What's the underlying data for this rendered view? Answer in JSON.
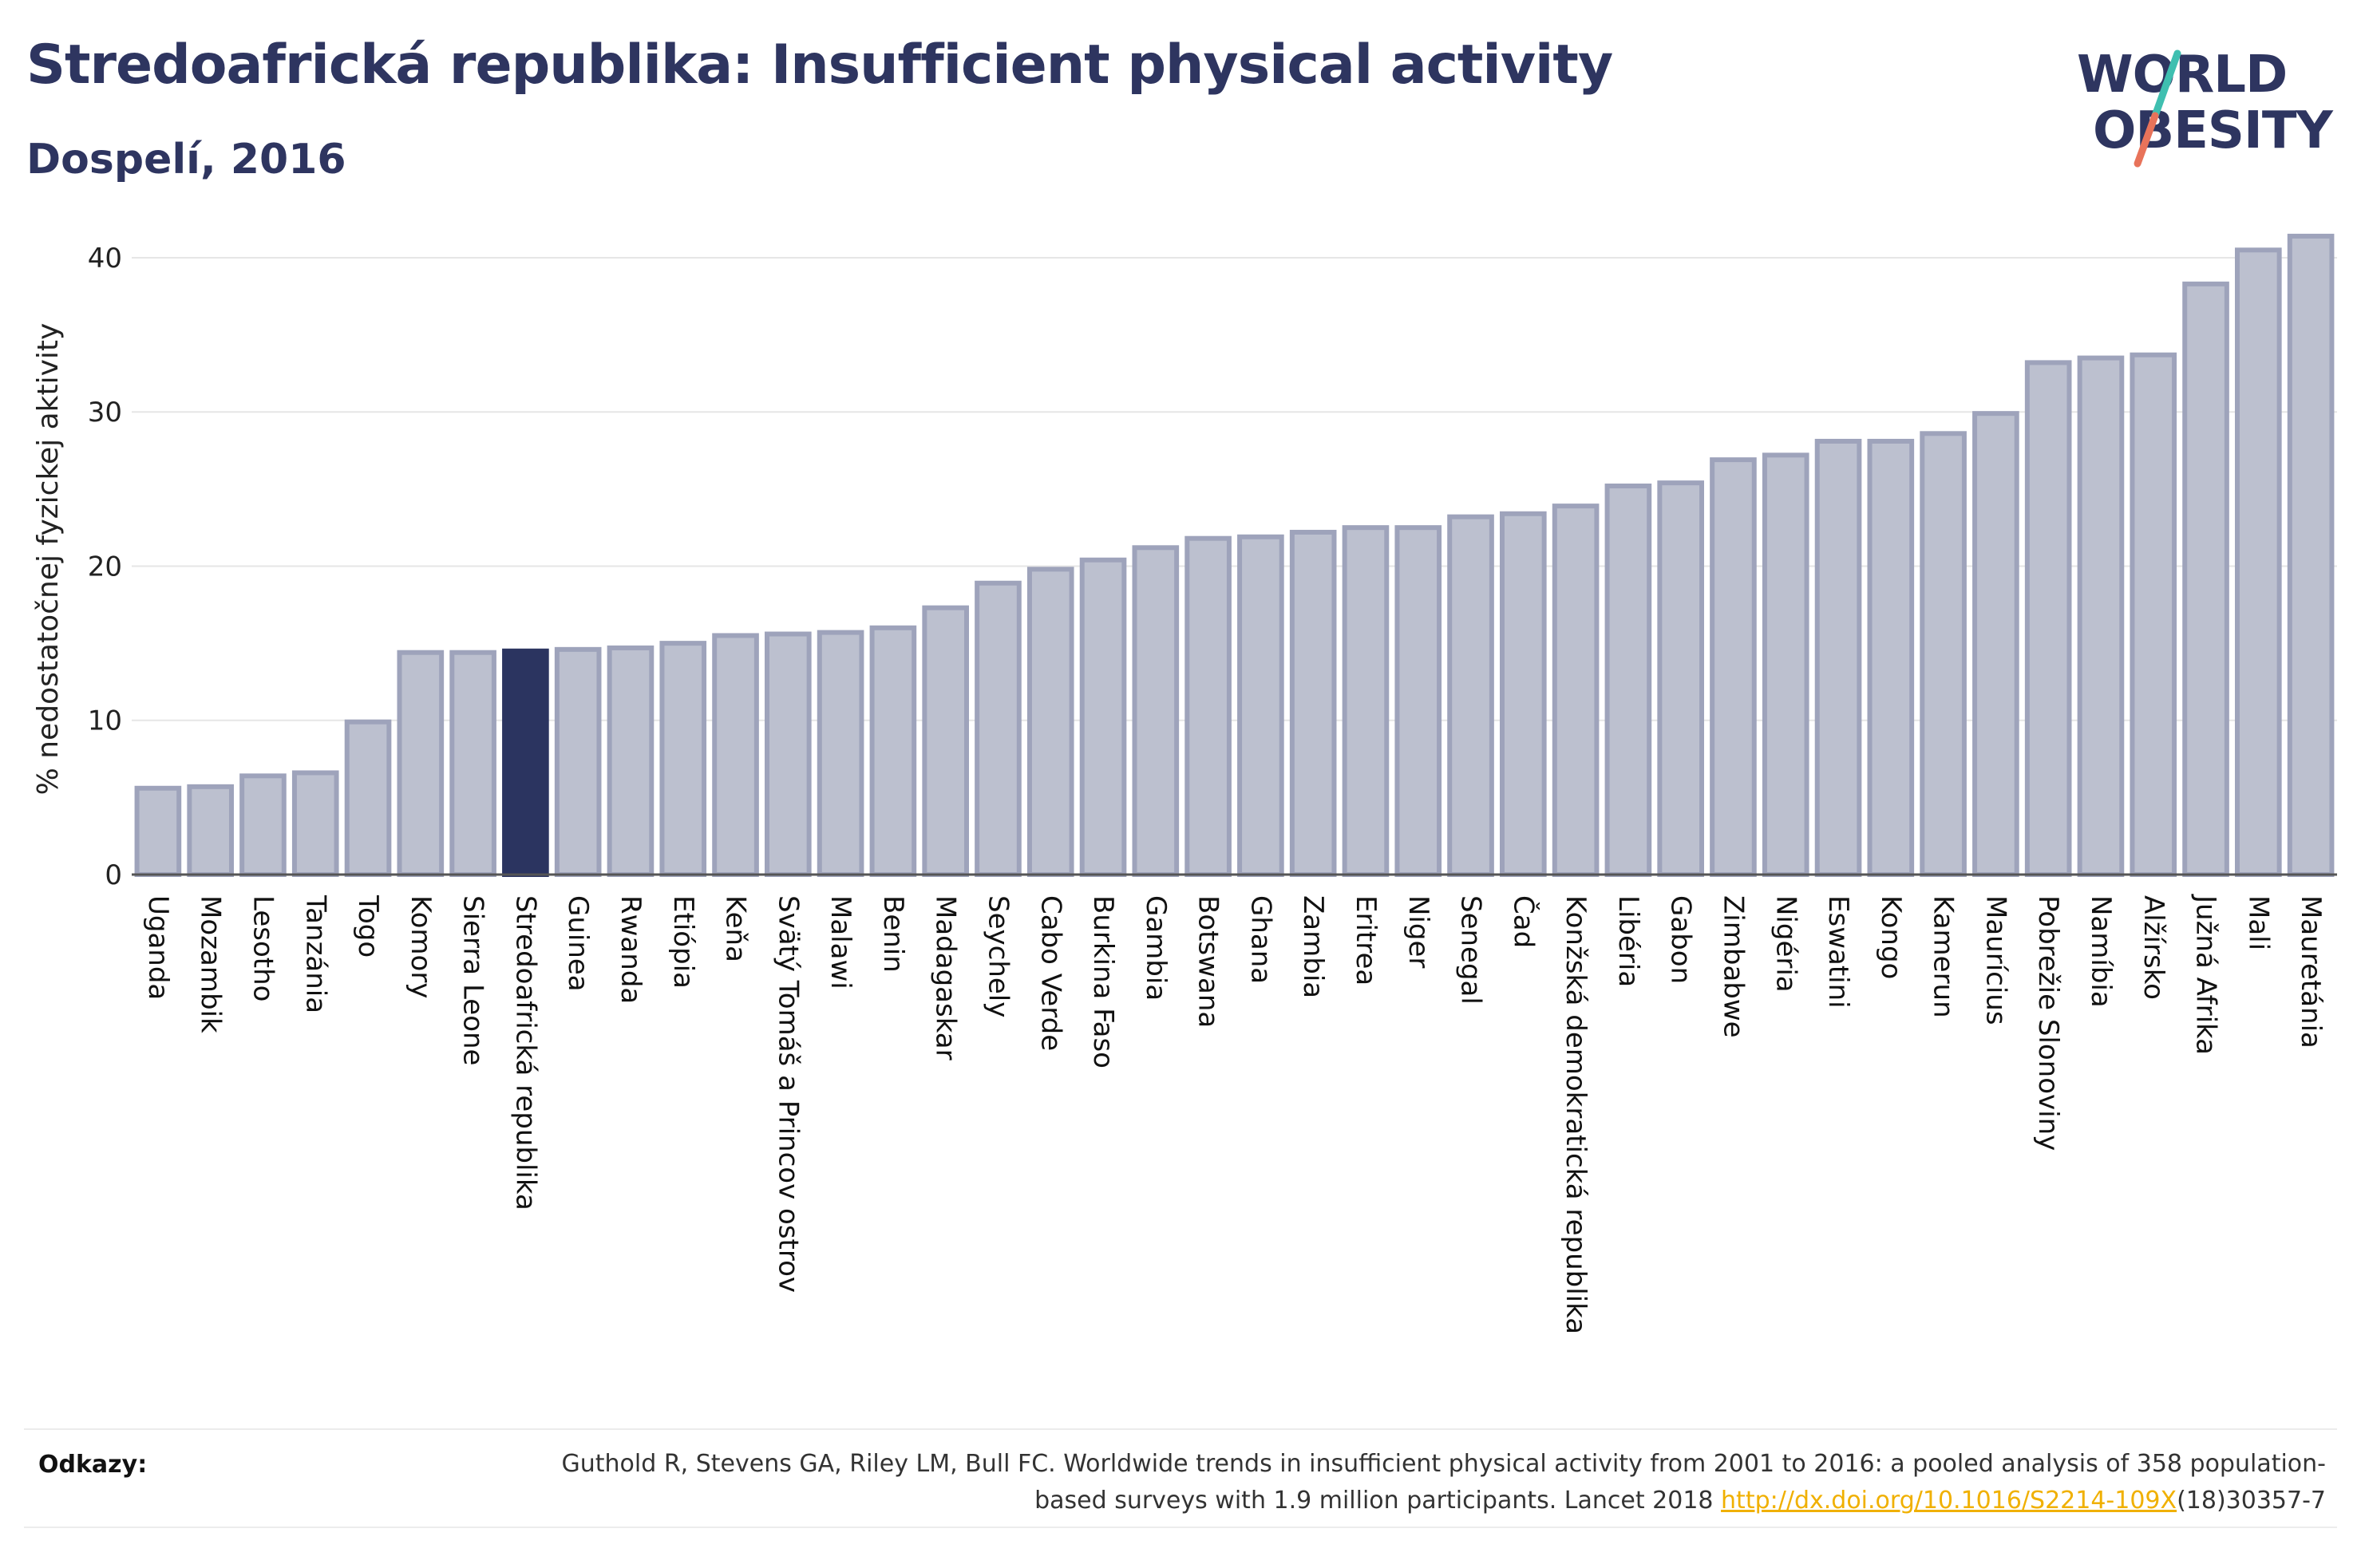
{
  "header": {
    "title": "Stredoafrická republika: Insufficient physical activity",
    "subtitle": "Dospelí, 2016"
  },
  "logo": {
    "line1": "WORLD",
    "line2": "OBESITY",
    "text_color": "#2e3560",
    "slash_top_color": "#3fbfb0",
    "slash_bottom_color": "#e8735a"
  },
  "chart_data": {
    "type": "bar",
    "ylabel": "% nedostatočnej fyzickej aktivity",
    "xlabel": "",
    "ylim": [
      0,
      43
    ],
    "yticks": [
      0,
      10,
      20,
      30,
      40
    ],
    "grid": true,
    "highlight": "Stredoafrická republika",
    "colors": {
      "bar": "#bcc0cf",
      "bar_edge": "#9ea3bb",
      "highlight": "#2b3460",
      "axis": "#555555",
      "grid": "#e6e6e6"
    },
    "categories": [
      "Uganda",
      "Mozambik",
      "Lesotho",
      "Tanzánia",
      "Togo",
      "Komory",
      "Sierra Leone",
      "Stredoafrická republika",
      "Guinea",
      "Rwanda",
      "Etiópia",
      "Keňa",
      "Svätý Tomáš a Princov ostrov",
      "Malawi",
      "Benin",
      "Madagaskar",
      "Seychely",
      "Cabo Verde",
      "Burkina Faso",
      "Gambia",
      "Botswana",
      "Ghana",
      "Zambia",
      "Eritrea",
      "Niger",
      "Senegal",
      "Čad",
      "Konžská demokratická republika",
      "Libéria",
      "Gabon",
      "Zimbabwe",
      "Nigéria",
      "Eswatini",
      "Kongo",
      "Kamerun",
      "Maurícius",
      "Pobrežie Slonoviny",
      "Namíbia",
      "Alžírsko",
      "Južná Afrika",
      "Mali",
      "Mauretánia"
    ],
    "values": [
      5.6,
      5.7,
      6.4,
      6.6,
      9.9,
      14.4,
      14.4,
      14.5,
      14.6,
      14.7,
      15.0,
      15.5,
      15.6,
      15.7,
      16.0,
      17.3,
      18.9,
      19.8,
      20.4,
      21.2,
      21.8,
      21.9,
      22.2,
      22.5,
      22.5,
      23.2,
      23.4,
      23.9,
      25.2,
      25.4,
      26.9,
      27.2,
      28.1,
      28.1,
      28.6,
      29.9,
      33.2,
      33.5,
      33.7,
      38.3,
      40.5,
      41.4
    ]
  },
  "references": {
    "label": "Odkazy:",
    "text_before": "Guthold R, Stevens GA, Riley LM, Bull FC. Worldwide trends in insufficient physical activity from 2001 to 2016: a pooled analysis of 358 population-based surveys with 1.9 million participants. Lancet 2018 ",
    "link": "http://dx.doi.org/10.1016/S2214-109X",
    "text_after": "(18)30357-7"
  }
}
